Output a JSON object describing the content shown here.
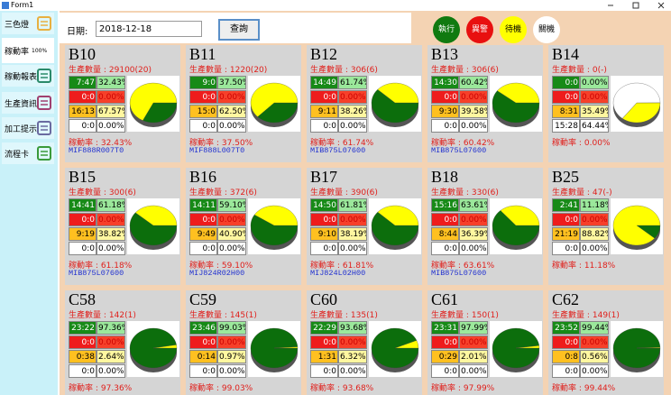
{
  "window": {
    "title": "Form1"
  },
  "sidebar": [
    {
      "label": "三色燈"
    },
    {
      "label": "稼動率",
      "badge": "100%"
    },
    {
      "label": "稼動報表"
    },
    {
      "label": "生產資訊"
    },
    {
      "label": "加工提示"
    },
    {
      "label": "流程卡"
    }
  ],
  "toolbar": {
    "date_label": "日期:",
    "date": "2018-12-18",
    "button": "查詢",
    "statuses": [
      "執行",
      "異警",
      "待機",
      "關機"
    ]
  },
  "qty_label": "生產數量 :",
  "rate_label": "稼動率 :",
  "machines": [
    {
      "name": "B10",
      "qty": "29100(20)",
      "rows": [
        [
          "7:47",
          "32.43%"
        ],
        [
          "0:0",
          "0.00%"
        ],
        [
          "16:13",
          "67.57%"
        ],
        [
          "0:0",
          "0.00%"
        ]
      ],
      "rate": "32.43%",
      "part": "MIF888R007T0"
    },
    {
      "name": "B11",
      "qty": "1220(20)",
      "rows": [
        [
          "9:0",
          "37.50%"
        ],
        [
          "0:0",
          "0.00%"
        ],
        [
          "15:0",
          "62.50%"
        ],
        [
          "0:0",
          "0.00%"
        ]
      ],
      "rate": "37.50%",
      "part": "MIF888L007T0"
    },
    {
      "name": "B12",
      "qty": "306(6)",
      "rows": [
        [
          "14:49",
          "61.74%"
        ],
        [
          "0:0",
          "0.00%"
        ],
        [
          "9:11",
          "38.26%"
        ],
        [
          "0:0",
          "0.00%"
        ]
      ],
      "rate": "61.74%",
      "part": "MIB875L07600"
    },
    {
      "name": "B13",
      "qty": "306(6)",
      "rows": [
        [
          "14:30",
          "60.42%"
        ],
        [
          "0:0",
          "0.00%"
        ],
        [
          "9:30",
          "39.58%"
        ],
        [
          "0:0",
          "0.00%"
        ]
      ],
      "rate": "60.42%",
      "part": "MIB875L07600"
    },
    {
      "name": "B14",
      "qty": "0(-)",
      "rows": [
        [
          "0:0",
          "0.00%"
        ],
        [
          "0:0",
          "0.00%"
        ],
        [
          "8:31",
          "35.49%"
        ],
        [
          "15:28",
          "64.44%"
        ]
      ],
      "rate": "0.00%"
    },
    {
      "name": "B15",
      "qty": "300(6)",
      "rows": [
        [
          "14:41",
          "61.18%"
        ],
        [
          "0:0",
          "0.00%"
        ],
        [
          "9:19",
          "38.82%"
        ],
        [
          "0:0",
          "0.00%"
        ]
      ],
      "rate": "61.18%",
      "part": "MIB875L07600"
    },
    {
      "name": "B16",
      "qty": "372(6)",
      "rows": [
        [
          "14:11",
          "59.10%"
        ],
        [
          "0:0",
          "0.00%"
        ],
        [
          "9:49",
          "40.90%"
        ],
        [
          "0:0",
          "0.00%"
        ]
      ],
      "rate": "59.10%",
      "part": "MIJ824R02H00"
    },
    {
      "name": "B17",
      "qty": "390(6)",
      "rows": [
        [
          "14:50",
          "61.81%"
        ],
        [
          "0:0",
          "0.00%"
        ],
        [
          "9:10",
          "38.19%"
        ],
        [
          "0:0",
          "0.00%"
        ]
      ],
      "rate": "61.81%",
      "part": "MIJ824L02H00"
    },
    {
      "name": "B18",
      "qty": "330(6)",
      "rows": [
        [
          "15:16",
          "63.61%"
        ],
        [
          "0:0",
          "0.00%"
        ],
        [
          "8:44",
          "36.39%"
        ],
        [
          "0:0",
          "0.00%"
        ]
      ],
      "rate": "63.61%",
      "part": "MIB875L07600"
    },
    {
      "name": "B25",
      "qty": "47(-)",
      "rows": [
        [
          "2:41",
          "11.18%"
        ],
        [
          "0:0",
          "0.00%"
        ],
        [
          "21:19",
          "88.82%"
        ],
        [
          "0:0",
          "0.00%"
        ]
      ],
      "rate": "11.18%"
    },
    {
      "name": "C58",
      "qty": "142(1)",
      "rows": [
        [
          "23:22",
          "97.36%"
        ],
        [
          "0:0",
          "0.00%"
        ],
        [
          "0:38",
          "2.64%"
        ],
        [
          "0:0",
          "0.00%"
        ]
      ],
      "rate": "97.36%"
    },
    {
      "name": "C59",
      "qty": "145(1)",
      "rows": [
        [
          "23:46",
          "99.03%"
        ],
        [
          "0:0",
          "0.00%"
        ],
        [
          "0:14",
          "0.97%"
        ],
        [
          "0:0",
          "0.00%"
        ]
      ],
      "rate": "99.03%"
    },
    {
      "name": "C60",
      "qty": "135(1)",
      "rows": [
        [
          "22:29",
          "93.68%"
        ],
        [
          "0:0",
          "0.00%"
        ],
        [
          "1:31",
          "6.32%"
        ],
        [
          "0:0",
          "0.00%"
        ]
      ],
      "rate": "93.68%"
    },
    {
      "name": "C61",
      "qty": "150(1)",
      "rows": [
        [
          "23:31",
          "97.99%"
        ],
        [
          "0:0",
          "0.00%"
        ],
        [
          "0:29",
          "2.01%"
        ],
        [
          "0:0",
          "0.00%"
        ]
      ],
      "rate": "97.99%"
    },
    {
      "name": "C62",
      "qty": "149(1)",
      "rows": [
        [
          "23:52",
          "99.44%"
        ],
        [
          "0:0",
          "0.00%"
        ],
        [
          "0:8",
          "0.56%"
        ],
        [
          "0:0",
          "0.00%"
        ]
      ],
      "rate": "99.44%"
    }
  ]
}
